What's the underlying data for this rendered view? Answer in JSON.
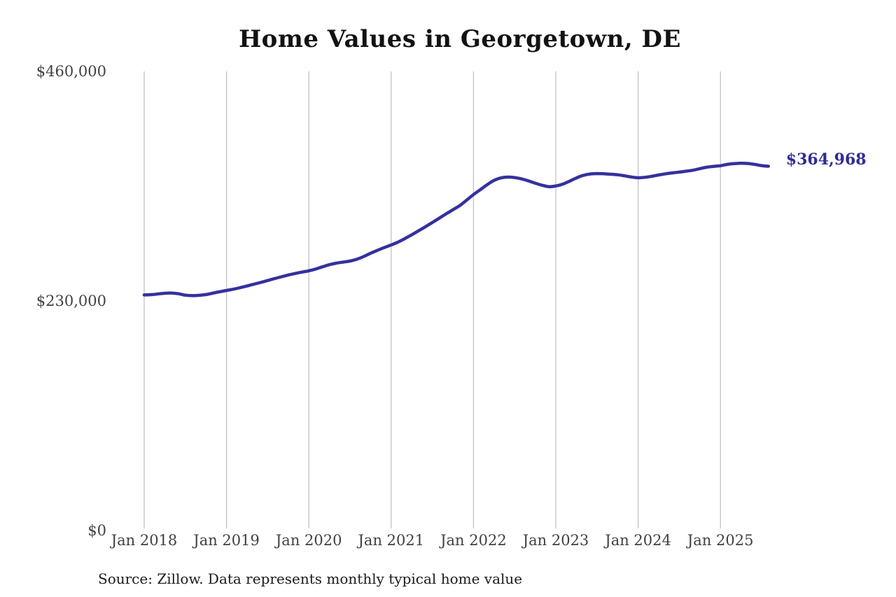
{
  "colors": {
    "background": "#ffffff",
    "line": "#35319d",
    "annotation": "#2f2c94",
    "grid": "#c2c2c2",
    "tick_text": "#414141",
    "title_text": "#121212"
  },
  "footer": {
    "source": "Source: Zillow. Data represents monthly typical home value"
  },
  "chart_data": {
    "type": "line",
    "title": "Home Values in Georgetown, DE",
    "xlabel": "",
    "ylabel": "",
    "ylim": [
      0,
      460000
    ],
    "grid": "vertical-gridlines-at-each-january",
    "legend_position": "none",
    "y_ticks": [
      {
        "value": 460000,
        "label": "$460,000"
      },
      {
        "value": 230000,
        "label": "$230,000"
      },
      {
        "value": 0,
        "label": "$0"
      }
    ],
    "x_tick_labels": [
      "Jan 2018",
      "Jan 2019",
      "Jan 2020",
      "Jan 2021",
      "Jan 2022",
      "Jan 2023",
      "Jan 2024",
      "Jan 2025"
    ],
    "series": [
      {
        "name": "Monthly typical home value",
        "x_start": "2018-01",
        "x_step_months": 1,
        "x_end": "2025-08",
        "values": [
          236000,
          236300,
          237000,
          237700,
          237900,
          237200,
          235800,
          235300,
          235700,
          236400,
          237800,
          239200,
          240500,
          241800,
          243300,
          245000,
          246800,
          248600,
          250500,
          252400,
          254200,
          256000,
          257500,
          258900,
          260200,
          262000,
          264200,
          266300,
          267900,
          268900,
          270000,
          271800,
          274500,
          277800,
          280700,
          283500,
          286100,
          289000,
          292500,
          296300,
          300300,
          304400,
          308600,
          312900,
          317200,
          321400,
          325600,
          331000,
          336600,
          341500,
          346500,
          350800,
          353300,
          354100,
          353600,
          352300,
          350300,
          348000,
          345900,
          344500,
          345200,
          347000,
          350000,
          353200,
          355800,
          357200,
          357600,
          357400,
          357000,
          356400,
          355400,
          354200,
          353400,
          353900,
          354900,
          356200,
          357400,
          358300,
          359100,
          360000,
          361000,
          362500,
          364000,
          364800,
          365500,
          366800,
          367600,
          368000,
          367700,
          366800,
          365600,
          364968
        ]
      }
    ],
    "final_value": 364968,
    "final_value_label": "$364,968"
  }
}
